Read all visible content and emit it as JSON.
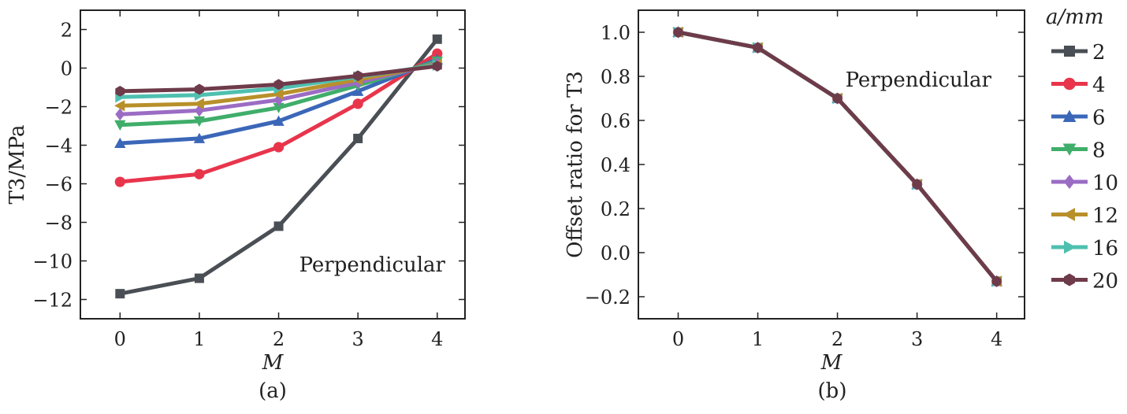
{
  "chart_data": [
    {
      "type": "line",
      "panel_label": "(a)",
      "annotation": "Perpendicular",
      "xlabel": "M",
      "ylabel": "T3/MPa",
      "x": [
        0,
        1,
        2,
        3,
        4
      ],
      "xticks": [
        "0",
        "1",
        "2",
        "3",
        "4"
      ],
      "xlim": [
        -0.5,
        4.35
      ],
      "ylim": [
        -13,
        3
      ],
      "yticks": [
        "2",
        "0",
        "−2",
        "−4",
        "−6",
        "−8",
        "−10",
        "−12"
      ],
      "ytick_values": [
        2,
        0,
        -2,
        -4,
        -6,
        -8,
        -10,
        -12
      ],
      "series": [
        {
          "name": "2",
          "color": "#4a4f55",
          "marker": "square",
          "values": [
            -11.7,
            -10.9,
            -8.2,
            -3.65,
            1.5
          ]
        },
        {
          "name": "4",
          "color": "#e8354c",
          "marker": "circle",
          "values": [
            -5.9,
            -5.5,
            -4.1,
            -1.85,
            0.75
          ]
        },
        {
          "name": "6",
          "color": "#3b67b8",
          "marker": "triangle-up",
          "values": [
            -3.9,
            -3.65,
            -2.75,
            -1.2,
            0.45
          ]
        },
        {
          "name": "8",
          "color": "#3fae6a",
          "marker": "triangle-down",
          "values": [
            -2.95,
            -2.75,
            -2.05,
            -0.9,
            0.35
          ]
        },
        {
          "name": "10",
          "color": "#9b6cc4",
          "marker": "diamond",
          "values": [
            -2.4,
            -2.2,
            -1.65,
            -0.75,
            0.25
          ]
        },
        {
          "name": "12",
          "color": "#b8902a",
          "marker": "triangle-left",
          "values": [
            -1.95,
            -1.85,
            -1.35,
            -0.6,
            0.2
          ]
        },
        {
          "name": "16",
          "color": "#4fc0b0",
          "marker": "triangle-right",
          "values": [
            -1.5,
            -1.4,
            -1.05,
            -0.45,
            0.15
          ]
        },
        {
          "name": "20",
          "color": "#6e3b4a",
          "marker": "hexagon",
          "values": [
            -1.2,
            -1.1,
            -0.85,
            -0.4,
            0.1
          ]
        }
      ]
    },
    {
      "type": "line",
      "panel_label": "(b)",
      "annotation": "Perpendicular",
      "xlabel": "M",
      "ylabel": "Offset ratio for T3",
      "x": [
        0,
        1,
        2,
        3,
        4
      ],
      "xticks": [
        "0",
        "1",
        "2",
        "3",
        "4"
      ],
      "xlim": [
        -0.5,
        4.35
      ],
      "ylim": [
        -0.3,
        1.1
      ],
      "yticks": [
        "1.0",
        "0.8",
        "0.6",
        "0.4",
        "0.2",
        "0.0",
        "−0.2"
      ],
      "ytick_values": [
        1.0,
        0.8,
        0.6,
        0.4,
        0.2,
        0.0,
        -0.2
      ],
      "series": [
        {
          "name": "2",
          "color": "#4a4f55",
          "marker": "square",
          "values": [
            1.0,
            0.93,
            0.7,
            0.31,
            -0.13
          ]
        },
        {
          "name": "4",
          "color": "#e8354c",
          "marker": "circle",
          "values": [
            1.0,
            0.93,
            0.7,
            0.31,
            -0.13
          ]
        },
        {
          "name": "6",
          "color": "#3b67b8",
          "marker": "triangle-up",
          "values": [
            1.0,
            0.93,
            0.7,
            0.31,
            -0.13
          ]
        },
        {
          "name": "8",
          "color": "#3fae6a",
          "marker": "triangle-down",
          "values": [
            1.0,
            0.93,
            0.7,
            0.31,
            -0.13
          ]
        },
        {
          "name": "10",
          "color": "#9b6cc4",
          "marker": "diamond",
          "values": [
            1.0,
            0.93,
            0.7,
            0.31,
            -0.13
          ]
        },
        {
          "name": "12",
          "color": "#b8902a",
          "marker": "triangle-left",
          "values": [
            1.0,
            0.93,
            0.7,
            0.31,
            -0.13
          ]
        },
        {
          "name": "16",
          "color": "#4fc0b0",
          "marker": "triangle-right",
          "values": [
            1.0,
            0.93,
            0.7,
            0.31,
            -0.13
          ]
        },
        {
          "name": "20",
          "color": "#6e3b4a",
          "marker": "hexagon",
          "values": [
            1.0,
            0.93,
            0.7,
            0.31,
            -0.13
          ]
        }
      ]
    }
  ],
  "legend": {
    "title": "a/mm",
    "entries": [
      "2",
      "4",
      "6",
      "8",
      "10",
      "12",
      "16",
      "20"
    ]
  }
}
